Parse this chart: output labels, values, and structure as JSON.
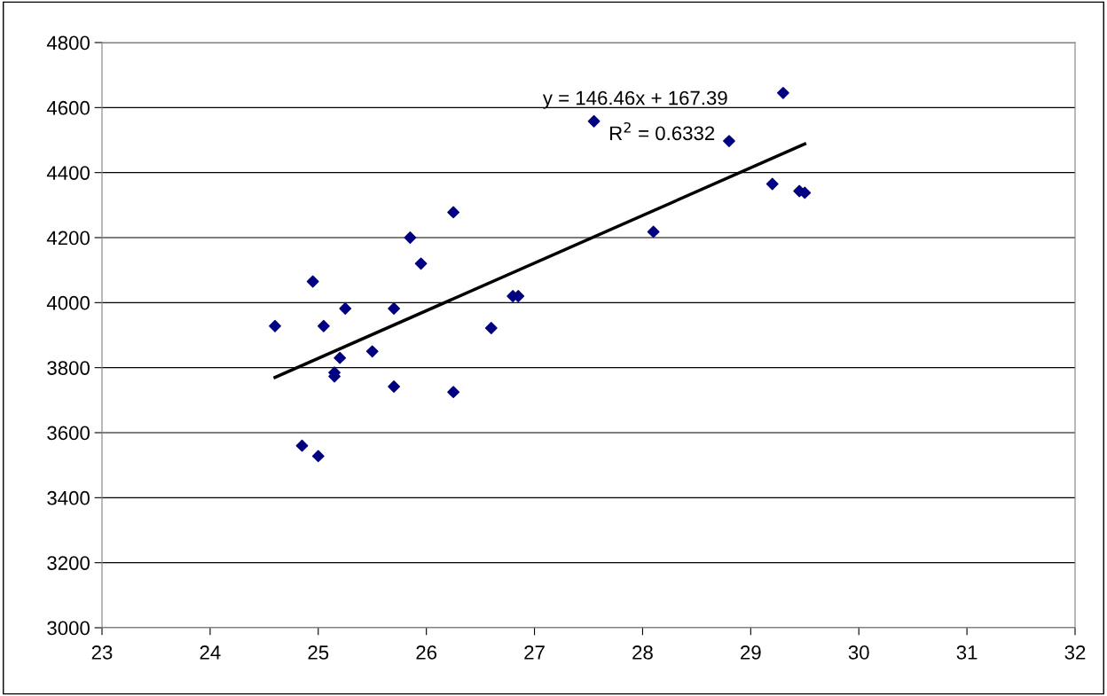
{
  "chart_data": {
    "type": "scatter",
    "marker": "diamond",
    "grid": "y",
    "legend": false,
    "xlim": [
      23,
      32
    ],
    "xticks": [
      23,
      24,
      25,
      26,
      27,
      28,
      29,
      30,
      31,
      32
    ],
    "ylim": [
      3000,
      4800
    ],
    "yticks": [
      3000,
      3200,
      3400,
      3600,
      3800,
      4000,
      4200,
      4400,
      4600,
      4800
    ],
    "series": [
      {
        "color": "#000080",
        "x": [
          24.6,
          24.85,
          24.95,
          25.0,
          25.05,
          25.15,
          25.15,
          25.2,
          25.25,
          25.5,
          25.7,
          25.7,
          25.85,
          25.95,
          26.25,
          26.25,
          26.6,
          26.8,
          26.85,
          27.55,
          28.1,
          28.8,
          29.2,
          29.3,
          29.45,
          29.5
        ],
        "values": [
          3928,
          3560,
          4065,
          3528,
          3928,
          3785,
          3773,
          3830,
          3982,
          3850,
          3982,
          3742,
          4200,
          4120,
          4278,
          3725,
          3922,
          4020,
          4020,
          4558,
          4218,
          4497,
          4365,
          4645,
          4343,
          4338
        ]
      },
      {
        "type": "line",
        "color": "#000000",
        "marker": "none",
        "line_style": "solid",
        "x": [
          24.6,
          29.5
        ],
        "values": [
          3770,
          4488
        ]
      }
    ],
    "annotations": [
      "y = 146.46x + 167.39",
      "R$^{2}$ = 0.6332"
    ]
  }
}
